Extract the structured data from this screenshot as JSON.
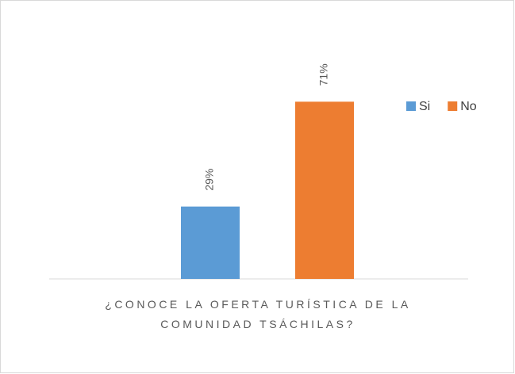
{
  "chart_data": {
    "type": "bar",
    "categories": [
      "¿CONOCE LA OFERTA TURÍSTICA DE LA COMUNIDAD TSÁCHILAS?"
    ],
    "series": [
      {
        "name": "Si",
        "color": "#5b9bd5",
        "values": [
          29
        ],
        "value_labels": [
          "29%"
        ]
      },
      {
        "name": "No",
        "color": "#ed7d31",
        "values": [
          71
        ],
        "value_labels": [
          "71%"
        ]
      }
    ],
    "ylim": [
      0,
      80
    ],
    "legend": "right"
  }
}
